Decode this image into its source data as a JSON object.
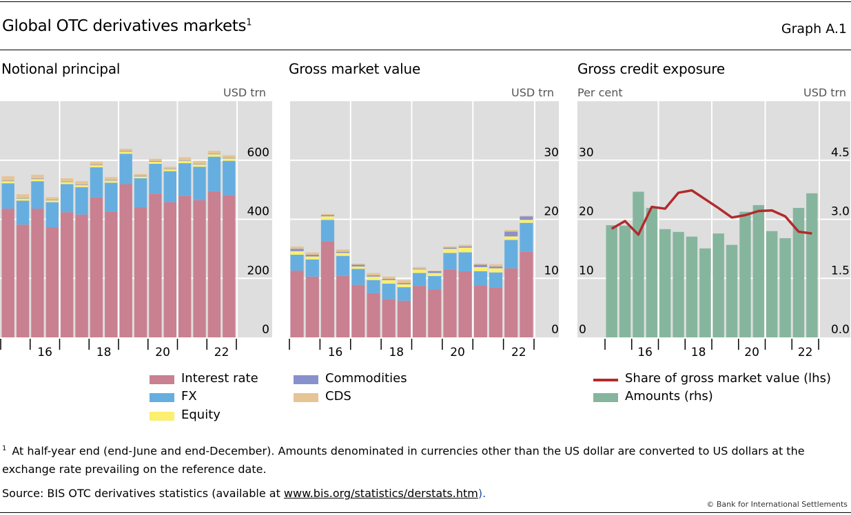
{
  "header": {
    "title": "Global OTC derivatives markets",
    "title_footnote": "1",
    "graph_number": "Graph A.1"
  },
  "colors": {
    "interest_rate": "#c98090",
    "fx": "#66aee0",
    "equity": "#fbef6f",
    "commodities": "#8891cb",
    "cds": "#e6c495",
    "amounts": "#86b59e",
    "share_line": "#b22a2b",
    "plot_bg": "#dedede",
    "grid": "#ffffff"
  },
  "legend_stack": [
    {
      "key": "interest_rate",
      "label": "Interest rate"
    },
    {
      "key": "fx",
      "label": "FX"
    },
    {
      "key": "equity",
      "label": "Equity"
    },
    {
      "key": "commodities",
      "label": "Commodities"
    },
    {
      "key": "cds",
      "label": "CDS"
    }
  ],
  "legend_exposure": [
    {
      "key": "share_line",
      "label": "Share of gross market value (lhs)",
      "kind": "line"
    },
    {
      "key": "amounts",
      "label": "Amounts (rhs)",
      "kind": "bar"
    }
  ],
  "footnote": {
    "marker": "1",
    "text": "At half-year end (end-June and end-December). Amounts denominated in currencies other than the US dollar are converted to US dollars at the exchange rate prevailing on the reference date."
  },
  "source": {
    "prefix": "Source: BIS OTC derivatives statistics (available at ",
    "link": "www.bis.org/statistics/derstats.htm",
    "suffix": ")."
  },
  "copyright": "© Bank for International Settlements",
  "chart_data": [
    {
      "type": "bar",
      "stacked": true,
      "title": "Notional principal",
      "ylabel_right": "USD trn",
      "ylim": [
        0,
        800
      ],
      "yticks": [
        0,
        200,
        400,
        600
      ],
      "grid": true,
      "periods": [
        "2015 H1",
        "2015 H2",
        "2016 H1",
        "2016 H2",
        "2017 H1",
        "2017 H2",
        "2018 H1",
        "2018 H2",
        "2019 H1",
        "2019 H2",
        "2020 H1",
        "2020 H2",
        "2021 H1",
        "2021 H2",
        "2022 H1",
        "2022 H2"
      ],
      "xtick_labels": [
        "16",
        "18",
        "20",
        "22"
      ],
      "series": [
        {
          "name": "Interest rate",
          "key": "interest_rate",
          "values": [
            436,
            382,
            436,
            372,
            424,
            416,
            475,
            426,
            519,
            441,
            487,
            458,
            480,
            465,
            495,
            482
          ]
        },
        {
          "name": "FX",
          "key": "fx",
          "values": [
            86,
            81,
            93,
            86,
            95,
            93,
            101,
            98,
            103,
            98,
            101,
            105,
            110,
            113,
            117,
            116
          ]
        },
        {
          "name": "Equity",
          "key": "equity",
          "values": [
            7,
            7,
            7,
            6,
            7,
            7,
            7,
            7,
            7,
            6,
            7,
            7,
            8,
            8,
            8,
            8
          ]
        },
        {
          "name": "Commodities",
          "key": "commodities",
          "values": [
            2,
            2,
            2,
            2,
            2,
            2,
            2,
            2,
            2,
            2,
            2,
            2,
            2,
            2,
            2,
            2
          ]
        },
        {
          "name": "CDS",
          "key": "cds",
          "values": [
            15,
            13,
            13,
            9,
            11,
            11,
            10,
            10,
            8,
            6,
            8,
            6,
            10,
            10,
            10,
            9
          ]
        }
      ]
    },
    {
      "type": "bar",
      "stacked": true,
      "title": "Gross market value",
      "ylabel_right": "USD trn",
      "ylim": [
        0,
        40
      ],
      "yticks": [
        0,
        10,
        20,
        30
      ],
      "grid": true,
      "periods": [
        "2015 H1",
        "2015 H2",
        "2016 H1",
        "2016 H2",
        "2017 H1",
        "2017 H2",
        "2018 H1",
        "2018 H2",
        "2019 H1",
        "2019 H2",
        "2020 H1",
        "2020 H2",
        "2021 H1",
        "2021 H2",
        "2022 H1",
        "2022 H2"
      ],
      "xtick_labels": [
        "16",
        "18",
        "20",
        "22"
      ],
      "series": [
        {
          "name": "Interest rate",
          "key": "interest_rate",
          "values": [
            11.3,
            10.3,
            16.3,
            10.4,
            8.9,
            7.5,
            6.5,
            6.2,
            8.7,
            8.1,
            11.5,
            11.2,
            8.8,
            8.4,
            11.7,
            14.5
          ]
        },
        {
          "name": "FX",
          "key": "fx",
          "values": [
            2.7,
            2.9,
            3.6,
            3.4,
            2.7,
            2.2,
            2.6,
            2.3,
            2.2,
            2.3,
            2.8,
            3.2,
            2.4,
            2.6,
            4.8,
            4.9
          ]
        },
        {
          "name": "Equity",
          "key": "equity",
          "values": [
            0.6,
            0.5,
            0.6,
            0.5,
            0.4,
            0.6,
            0.6,
            0.5,
            0.6,
            0.5,
            0.7,
            0.8,
            0.7,
            0.7,
            0.6,
            0.5
          ]
        },
        {
          "name": "Commodities",
          "key": "commodities",
          "values": [
            0.4,
            0.3,
            0.2,
            0.2,
            0.3,
            0.2,
            0.2,
            0.2,
            0.1,
            0.3,
            0.2,
            0.2,
            0.4,
            0.3,
            0.8,
            0.6
          ]
        },
        {
          "name": "CDS",
          "key": "cds",
          "values": [
            0.4,
            0.4,
            0.2,
            0.4,
            0.2,
            0.4,
            0.4,
            0.5,
            0.3,
            0.1,
            0.2,
            0.3,
            0.2,
            0.4,
            0.3,
            0.1
          ]
        }
      ]
    },
    {
      "type": "bar",
      "title": "Gross credit exposure",
      "ylabel_left": "Per cent",
      "ylabel_right": "USD trn",
      "ylim_left": [
        0,
        40
      ],
      "ylim_right": [
        0,
        6
      ],
      "yticks_left": [
        0,
        10,
        20,
        30
      ],
      "yticks_right": [
        "0.0",
        "1.5",
        "3.0",
        "4.5"
      ],
      "grid": true,
      "periods": [
        "2015 H1",
        "2015 H2",
        "2016 H1",
        "2016 H2",
        "2017 H1",
        "2017 H2",
        "2018 H1",
        "2018 H2",
        "2019 H1",
        "2019 H2",
        "2020 H1",
        "2020 H2",
        "2021 H1",
        "2021 H2",
        "2022 H1",
        "2022 H2"
      ],
      "xtick_labels": [
        "16",
        "18",
        "20",
        "22"
      ],
      "series": [
        {
          "name": "Amounts (rhs)",
          "key": "amounts",
          "type": "bar",
          "axis": "right",
          "values": [
            2.85,
            2.84,
            3.7,
            3.29,
            2.75,
            2.68,
            2.56,
            2.26,
            2.64,
            2.35,
            3.19,
            3.36,
            2.7,
            2.52,
            3.29,
            3.66
          ]
        },
        {
          "name": "Share of gross market value (lhs)",
          "key": "share_line",
          "type": "line",
          "axis": "left",
          "values": [
            18.4,
            19.7,
            17.4,
            22.1,
            21.8,
            24.5,
            24.9,
            23.4,
            21.9,
            20.3,
            20.7,
            21.4,
            21.5,
            20.5,
            17.9,
            17.6
          ]
        }
      ]
    }
  ]
}
